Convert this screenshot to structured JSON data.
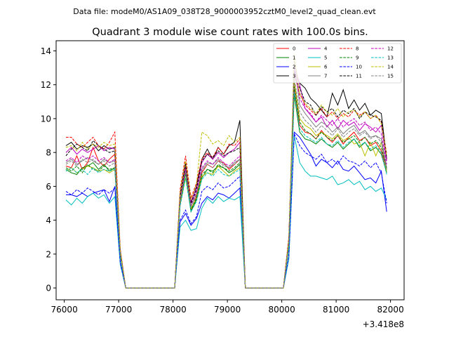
{
  "figure": {
    "suptitle": "Data file: modeM0/AS1A09_038T28_9000003952cztM0_level2_quad_clean.evt",
    "title": "Quadrant 3 module wise count rates with 100.0s bins.",
    "x_offset_label": "+3.418e8"
  },
  "chart_data": {
    "type": "line",
    "title": "Quadrant 3 module wise count rates with 100.0s bins.",
    "xlabel": "",
    "ylabel": "",
    "x_offset": 341800000,
    "xlim": [
      75850,
      82250
    ],
    "ylim": [
      -0.7,
      14.6
    ],
    "xticks": [
      76000,
      77000,
      78000,
      79000,
      80000,
      81000,
      82000
    ],
    "yticks": [
      0,
      2,
      4,
      6,
      8,
      10,
      12,
      14
    ],
    "grid": false,
    "legend_position": "top-right",
    "x": [
      76030,
      76130,
      76230,
      76330,
      76430,
      76530,
      76630,
      76730,
      76830,
      76930,
      77030,
      77130,
      77230,
      77330,
      77430,
      77530,
      77630,
      77730,
      77830,
      77930,
      78030,
      78130,
      78230,
      78330,
      78430,
      78530,
      78630,
      78730,
      78830,
      78930,
      79030,
      79130,
      79230,
      79330,
      79430,
      79530,
      79630,
      79730,
      79830,
      79930,
      80030,
      80130,
      80230,
      80330,
      80430,
      80530,
      80630,
      80730,
      80830,
      80930,
      81030,
      81130,
      81230,
      81330,
      81430,
      81530,
      81630,
      81730,
      81830,
      81930
    ],
    "series": [
      {
        "name": "0",
        "color": "#ff0000",
        "style": "solid",
        "values": [
          7.2,
          7.1,
          7.8,
          7.0,
          7.4,
          8.3,
          7.5,
          7.2,
          7.6,
          7.9,
          2.0,
          0,
          0,
          0,
          0,
          0,
          0,
          0,
          0,
          0,
          0,
          5.0,
          7.1,
          4.6,
          5.4,
          6.8,
          7.3,
          7.1,
          7.5,
          7.4,
          7.0,
          7.3,
          7.6,
          0,
          0,
          0,
          0,
          0,
          0,
          0,
          0,
          2.5,
          11.8,
          9.6,
          9.2,
          9.1,
          8.8,
          9.3,
          8.9,
          8.6,
          9.0,
          8.5,
          8.9,
          9.2,
          8.7,
          8.9,
          8.4,
          8.6,
          8.1,
          7.0
        ]
      },
      {
        "name": "1",
        "color": "#008000",
        "style": "solid",
        "values": [
          7.0,
          6.8,
          6.7,
          7.1,
          7.2,
          7.4,
          7.0,
          7.3,
          6.9,
          7.1,
          1.9,
          0,
          0,
          0,
          0,
          0,
          0,
          0,
          0,
          0,
          0,
          4.9,
          6.8,
          4.5,
          5.2,
          6.5,
          7.0,
          6.9,
          7.2,
          7.1,
          6.8,
          7.0,
          7.3,
          0,
          0,
          0,
          0,
          0,
          0,
          0,
          0,
          2.4,
          11.4,
          9.2,
          8.8,
          8.7,
          8.5,
          8.8,
          8.5,
          8.3,
          8.6,
          8.2,
          8.5,
          8.8,
          8.3,
          8.6,
          8.1,
          8.3,
          7.9,
          6.8
        ]
      },
      {
        "name": "2",
        "color": "#0000ff",
        "style": "solid",
        "values": [
          5.5,
          5.5,
          5.4,
          5.6,
          5.4,
          5.6,
          5.7,
          5.8,
          5.1,
          6.0,
          1.5,
          0,
          0,
          0,
          0,
          0,
          0,
          0,
          0,
          0,
          0,
          3.9,
          4.4,
          3.7,
          4.1,
          5.0,
          5.4,
          5.2,
          5.6,
          5.5,
          5.3,
          5.6,
          5.9,
          0,
          0,
          0,
          0,
          0,
          0,
          0,
          0,
          1.8,
          9.2,
          8.9,
          8.4,
          7.9,
          7.2,
          7.6,
          7.4,
          7.1,
          7.5,
          7.0,
          6.9,
          7.2,
          6.8,
          6.4,
          6.5,
          6.2,
          6.9,
          4.5
        ]
      },
      {
        "name": "3",
        "color": "#000000",
        "style": "solid",
        "values": [
          8.4,
          8.6,
          8.2,
          8.4,
          8.3,
          8.5,
          8.1,
          8.4,
          8.2,
          8.3,
          2.2,
          0,
          0,
          0,
          0,
          0,
          0,
          0,
          0,
          0,
          0,
          5.6,
          7.4,
          5.0,
          6.0,
          7.6,
          8.2,
          7.6,
          8.3,
          7.9,
          8.4,
          8.6,
          9.9,
          0,
          0,
          0,
          0,
          0,
          0,
          0,
          0,
          2.9,
          12.8,
          12.1,
          11.8,
          11.2,
          10.9,
          10.5,
          10.1,
          11.5,
          10.8,
          11.7,
          10.6,
          11.1,
          10.5,
          10.9,
          10.2,
          10.5,
          10.3,
          7.6
        ]
      },
      {
        "name": "4",
        "color": "#bf00bf",
        "style": "solid",
        "values": [
          8.0,
          8.3,
          7.9,
          8.2,
          8.0,
          8.2,
          8.4,
          8.1,
          8.3,
          8.2,
          2.1,
          0,
          0,
          0,
          0,
          0,
          0,
          0,
          0,
          0,
          0,
          5.5,
          7.2,
          5.1,
          5.9,
          7.4,
          7.9,
          7.6,
          8.0,
          7.7,
          8.0,
          8.2,
          8.6,
          0,
          0,
          0,
          0,
          0,
          0,
          0,
          0,
          2.8,
          13.2,
          12.0,
          10.6,
          10.2,
          9.8,
          10.1,
          9.5,
          9.9,
          9.4,
          9.9,
          9.6,
          9.8,
          9.3,
          9.7,
          9.5,
          9.2,
          9.6,
          7.5
        ]
      },
      {
        "name": "5",
        "color": "#00bfbf",
        "style": "solid",
        "values": [
          5.2,
          4.9,
          5.3,
          5.0,
          5.4,
          5.6,
          5.3,
          5.5,
          5.0,
          5.4,
          1.4,
          0,
          0,
          0,
          0,
          0,
          0,
          0,
          0,
          0,
          0,
          3.6,
          4.0,
          3.4,
          3.5,
          4.7,
          5.3,
          5.0,
          5.4,
          5.1,
          5.3,
          5.2,
          5.4,
          0,
          0,
          0,
          0,
          0,
          0,
          0,
          0,
          1.7,
          9.0,
          7.4,
          6.9,
          6.6,
          6.6,
          6.5,
          6.4,
          6.6,
          6.1,
          6.2,
          6.4,
          6.1,
          6.3,
          5.8,
          6.0,
          5.7,
          5.9,
          5.2
        ]
      },
      {
        "name": "6",
        "color": "#bfbf00",
        "style": "solid",
        "values": [
          6.9,
          7.1,
          6.8,
          7.0,
          7.2,
          7.1,
          6.9,
          7.0,
          6.8,
          7.0,
          1.9,
          0,
          0,
          0,
          0,
          0,
          0,
          0,
          0,
          0,
          0,
          4.9,
          6.5,
          4.7,
          5.3,
          6.6,
          6.8,
          6.7,
          7.2,
          6.9,
          6.6,
          6.9,
          7.1,
          0,
          0,
          0,
          0,
          0,
          0,
          0,
          0,
          2.4,
          12.2,
          10.0,
          9.6,
          9.4,
          9.0,
          9.2,
          9.0,
          8.8,
          9.1,
          8.7,
          8.9,
          8.5,
          8.6,
          7.8,
          8.6,
          7.8,
          8.6,
          6.9
        ]
      },
      {
        "name": "7",
        "color": "#808080",
        "style": "solid",
        "values": [
          7.4,
          7.6,
          7.3,
          7.5,
          7.7,
          7.5,
          7.3,
          7.6,
          7.4,
          7.5,
          2.0,
          0,
          0,
          0,
          0,
          0,
          0,
          0,
          0,
          0,
          0,
          5.1,
          6.9,
          4.8,
          5.6,
          7.0,
          7.4,
          7.3,
          7.6,
          7.3,
          7.1,
          7.4,
          7.6,
          0,
          0,
          0,
          0,
          0,
          0,
          0,
          0,
          2.6,
          13.5,
          10.8,
          10.3,
          9.9,
          9.5,
          9.8,
          9.6,
          9.2,
          9.5,
          9.1,
          9.4,
          9.6,
          9.1,
          9.3,
          8.9,
          9.0,
          8.8,
          7.1
        ]
      },
      {
        "name": "8",
        "color": "#ff0000",
        "style": "dashed",
        "values": [
          8.9,
          8.9,
          8.5,
          8.3,
          8.6,
          8.9,
          8.4,
          8.2,
          8.6,
          9.2,
          2.3,
          0,
          0,
          0,
          0,
          0,
          0,
          0,
          0,
          0,
          0,
          5.8,
          7.8,
          5.3,
          6.2,
          7.6,
          8.0,
          7.7,
          8.3,
          7.9,
          8.5,
          8.4,
          8.8,
          0,
          0,
          0,
          0,
          0,
          0,
          0,
          0,
          3.0,
          12.6,
          11.5,
          10.8,
          10.5,
          10.2,
          10.6,
          10.1,
          10.4,
          10.0,
          10.3,
          10.1,
          10.5,
          10.2,
          10.4,
          10.0,
          10.2,
          9.8,
          7.9
        ]
      },
      {
        "name": "9",
        "color": "#008000",
        "style": "dashed",
        "values": [
          7.1,
          6.9,
          7.2,
          6.8,
          7.3,
          7.0,
          6.9,
          7.2,
          7.0,
          7.1,
          1.9,
          0,
          0,
          0,
          0,
          0,
          0,
          0,
          0,
          0,
          0,
          5.0,
          6.8,
          4.6,
          5.3,
          6.7,
          7.0,
          6.8,
          7.3,
          7.1,
          6.9,
          7.1,
          7.4,
          0,
          0,
          0,
          0,
          0,
          0,
          0,
          0,
          2.5,
          11.9,
          9.8,
          9.3,
          9.1,
          8.8,
          9.2,
          8.9,
          8.7,
          9.0,
          8.6,
          8.8,
          9.0,
          8.6,
          8.9,
          8.5,
          8.7,
          8.3,
          7.0
        ]
      },
      {
        "name": "10",
        "color": "#0000ff",
        "style": "dashed",
        "values": [
          5.7,
          5.5,
          5.8,
          5.6,
          5.9,
          5.7,
          5.5,
          5.8,
          5.6,
          5.9,
          1.5,
          0,
          0,
          0,
          0,
          0,
          0,
          0,
          0,
          0,
          0,
          4.0,
          4.6,
          3.8,
          4.2,
          5.7,
          6.0,
          5.8,
          6.2,
          5.9,
          6.0,
          6.3,
          6.6,
          0,
          0,
          0,
          0,
          0,
          0,
          0,
          0,
          1.9,
          9.1,
          8.4,
          8.0,
          7.8,
          7.6,
          7.9,
          7.4,
          7.6,
          7.3,
          7.8,
          7.5,
          7.4,
          7.2,
          7.5,
          7.1,
          7.4,
          6.8,
          5.0
        ]
      },
      {
        "name": "11",
        "color": "#000000",
        "style": "dashed",
        "values": [
          7.8,
          8.2,
          8.5,
          8.3,
          8.1,
          8.7,
          8.4,
          8.2,
          8.0,
          8.1,
          2.1,
          0,
          0,
          0,
          0,
          0,
          0,
          0,
          0,
          0,
          0,
          5.4,
          7.3,
          5.0,
          5.8,
          7.5,
          7.9,
          7.7,
          8.1,
          7.8,
          8.0,
          8.1,
          8.3,
          0,
          0,
          0,
          0,
          0,
          0,
          0,
          0,
          2.8,
          12.5,
          11.8,
          11.0,
          10.8,
          10.2,
          10.7,
          10.4,
          10.6,
          10.1,
          10.5,
          10.3,
          10.6,
          10.0,
          10.4,
          10.2,
          10.1,
          9.9,
          7.7
        ]
      },
      {
        "name": "12",
        "color": "#bf00bf",
        "style": "dashed",
        "values": [
          7.5,
          7.7,
          7.4,
          7.8,
          7.6,
          7.8,
          7.5,
          7.7,
          7.4,
          7.6,
          2.0,
          0,
          0,
          0,
          0,
          0,
          0,
          0,
          0,
          0,
          0,
          5.2,
          7.0,
          4.9,
          5.7,
          7.1,
          7.5,
          7.3,
          7.7,
          7.4,
          7.2,
          7.5,
          7.8,
          0,
          0,
          0,
          0,
          0,
          0,
          0,
          0,
          2.7,
          13.0,
          11.2,
          10.6,
          10.3,
          9.8,
          10.2,
          9.9,
          9.6,
          10.0,
          9.5,
          9.8,
          10.0,
          9.6,
          9.8,
          9.3,
          9.5,
          9.1,
          7.3
        ]
      },
      {
        "name": "13",
        "color": "#00bfbf",
        "style": "dashed",
        "values": [
          6.9,
          7.1,
          6.8,
          7.0,
          6.7,
          7.1,
          6.8,
          7.0,
          6.9,
          7.0,
          1.9,
          0,
          0,
          0,
          0,
          0,
          0,
          0,
          0,
          0,
          0,
          4.8,
          6.5,
          4.5,
          5.1,
          6.4,
          6.8,
          6.6,
          7.0,
          6.7,
          6.6,
          6.8,
          7.0,
          0,
          0,
          0,
          0,
          0,
          0,
          0,
          0,
          2.4,
          11.6,
          9.4,
          9.0,
          8.8,
          8.6,
          8.9,
          8.5,
          8.4,
          8.7,
          8.3,
          8.6,
          8.8,
          8.4,
          8.6,
          8.2,
          8.4,
          8.0,
          6.7
        ]
      },
      {
        "name": "14",
        "color": "#bfbf00",
        "style": "dashed",
        "values": [
          8.3,
          8.4,
          8.1,
          8.6,
          8.2,
          8.5,
          8.3,
          8.6,
          8.4,
          8.5,
          2.2,
          0,
          0,
          0,
          0,
          0,
          0,
          0,
          0,
          0,
          0,
          5.6,
          7.5,
          5.2,
          6.1,
          9.2,
          9.0,
          8.5,
          8.7,
          8.4,
          9.0,
          8.6,
          8.9,
          0,
          0,
          0,
          0,
          0,
          0,
          0,
          0,
          2.9,
          13.8,
          11.4,
          10.9,
          10.6,
          10.3,
          10.8,
          10.4,
          10.2,
          10.6,
          10.1,
          10.4,
          10.5,
          10.1,
          10.4,
          10.0,
          10.2,
          9.7,
          7.8
        ]
      },
      {
        "name": "15",
        "color": "#808080",
        "style": "dashed",
        "values": [
          7.3,
          7.5,
          7.2,
          7.6,
          7.4,
          7.6,
          7.3,
          7.5,
          7.2,
          7.4,
          2.0,
          0,
          0,
          0,
          0,
          0,
          0,
          0,
          0,
          0,
          0,
          5.1,
          6.9,
          4.8,
          5.5,
          6.9,
          7.3,
          7.1,
          7.5,
          7.2,
          7.1,
          7.3,
          7.6,
          0,
          0,
          0,
          0,
          0,
          0,
          0,
          0,
          2.6,
          12.4,
          10.4,
          9.9,
          9.6,
          9.2,
          9.6,
          9.3,
          9.0,
          9.4,
          8.9,
          9.2,
          9.4,
          9.0,
          9.2,
          8.8,
          9.0,
          8.6,
          7.0
        ]
      }
    ]
  }
}
